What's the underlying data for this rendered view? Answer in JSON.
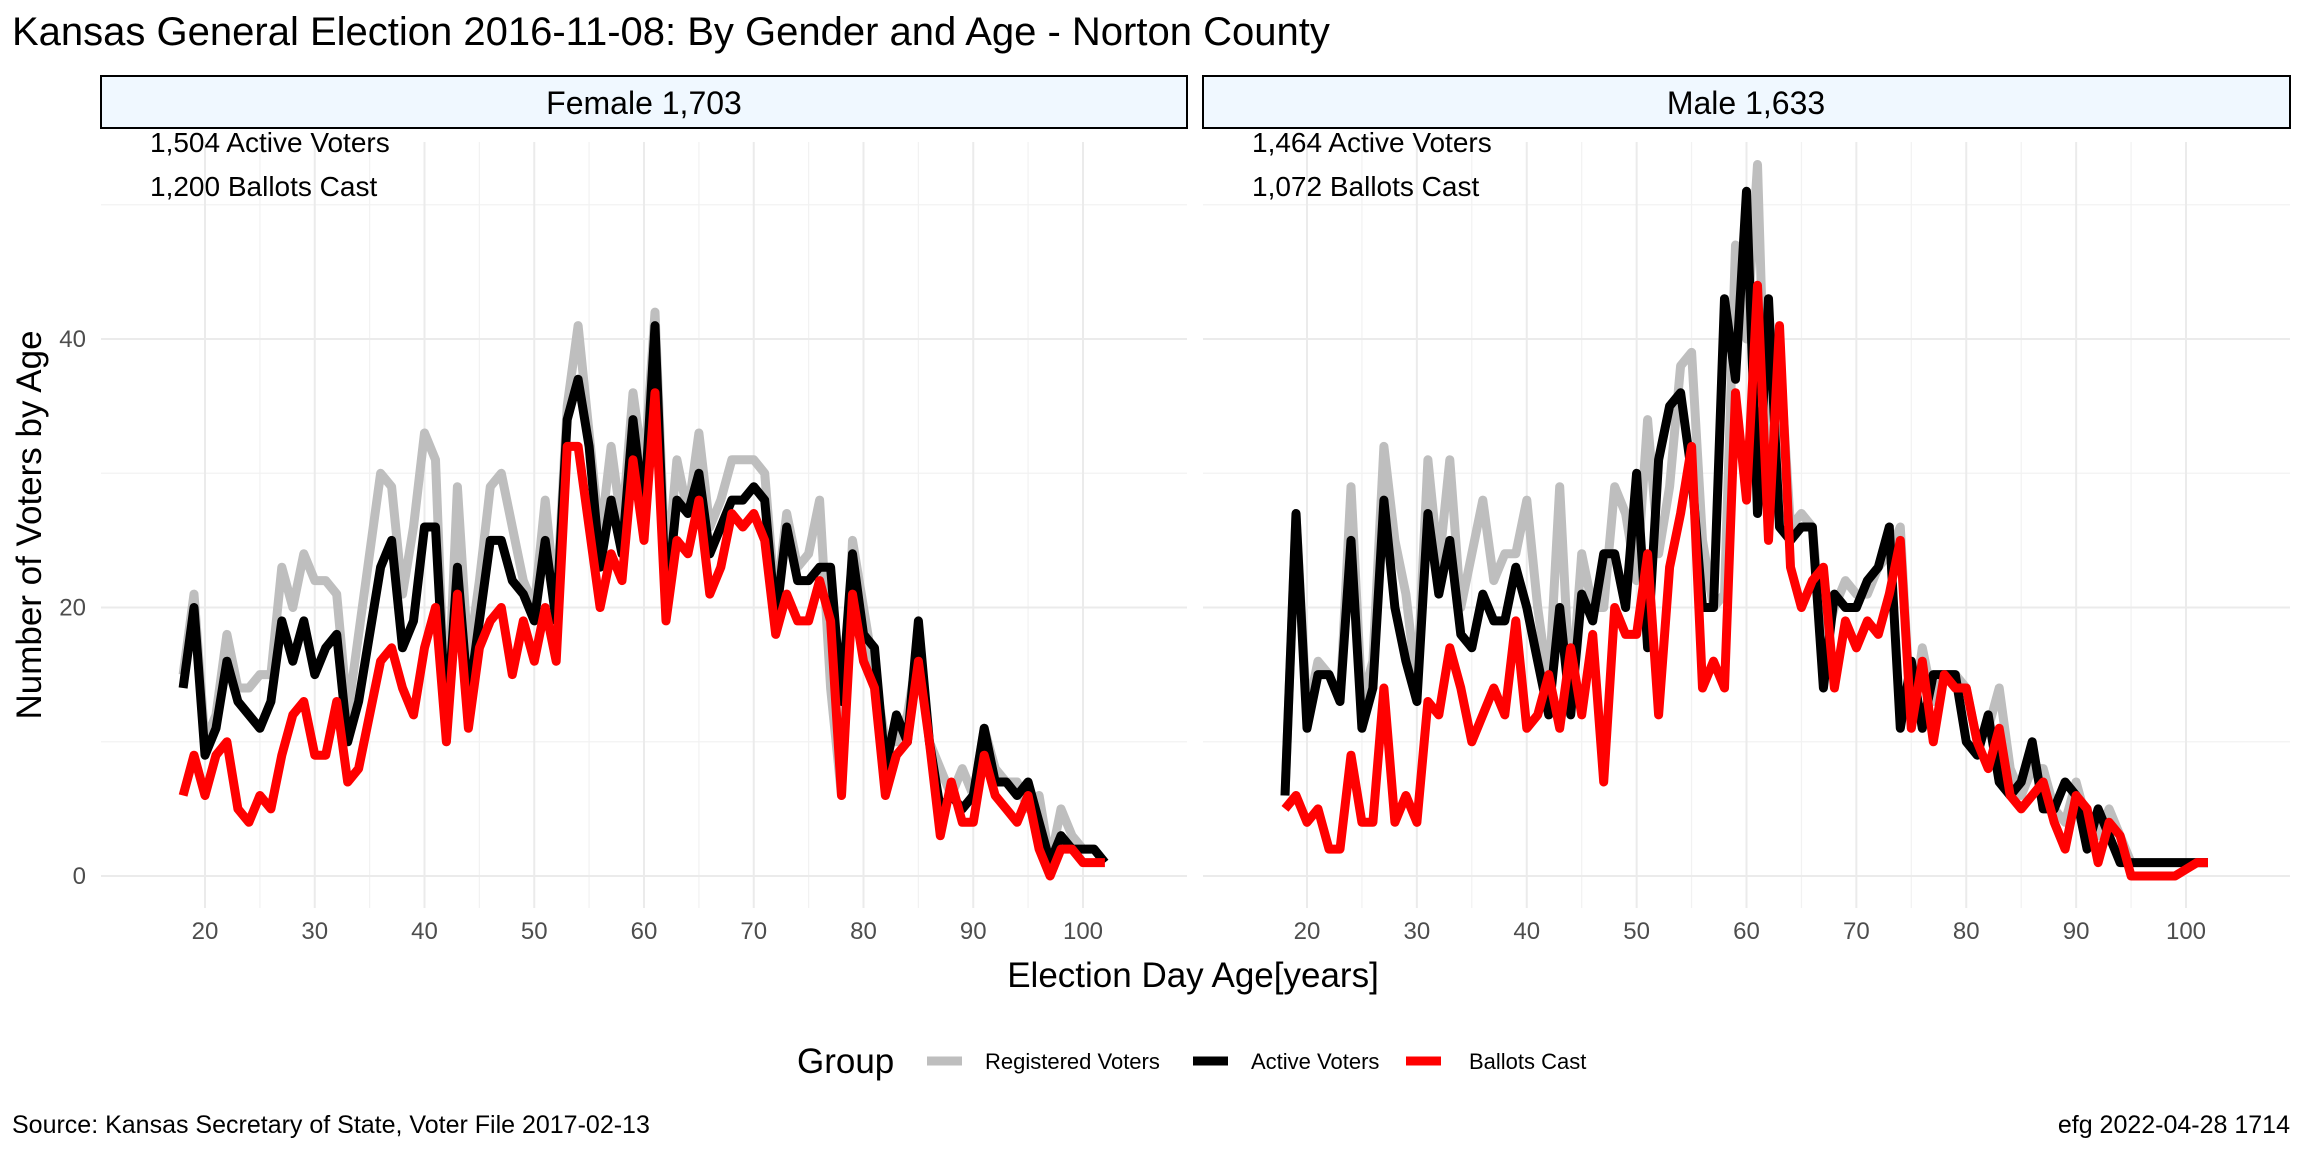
{
  "title": "Kansas General Election 2016-11-08:  By Gender and Age - Norton County",
  "xlabel": "Election Day Age[years]",
  "ylabel": "Number of Voters by Age",
  "source": "Source:  Kansas Secretary of State, Voter File  2017-02-13",
  "credit": "efg 2022-04-28 1714",
  "legend": {
    "title": "Group",
    "items": [
      {
        "label": "Registered Voters",
        "color": "#bebebe"
      },
      {
        "label": "Active Voters",
        "color": "#000000"
      },
      {
        "label": "Ballots Cast",
        "color": "#ff0000"
      }
    ]
  },
  "colors": {
    "strip_fill": "#f0f8ff",
    "grid": "#ebebeb",
    "registered": "#bebebe",
    "active": "#000000",
    "ballots": "#ff0000"
  },
  "chart_data": [
    {
      "type": "line",
      "panel": "Female 1,703",
      "annotations": [
        "1,504 Active Voters",
        "1,200 Ballots Cast"
      ],
      "xlim": [
        18,
        102
      ],
      "ylim": [
        0,
        50
      ],
      "x_ticks": [
        20,
        30,
        40,
        50,
        60,
        70,
        80,
        90,
        100
      ],
      "y_ticks": [
        0,
        20,
        40
      ],
      "x": [
        18,
        19,
        20,
        21,
        22,
        23,
        24,
        25,
        26,
        27,
        28,
        29,
        30,
        31,
        32,
        33,
        34,
        35,
        36,
        37,
        38,
        39,
        40,
        41,
        42,
        43,
        44,
        45,
        46,
        47,
        48,
        49,
        50,
        51,
        52,
        53,
        54,
        55,
        56,
        57,
        58,
        59,
        60,
        61,
        62,
        63,
        64,
        65,
        66,
        67,
        68,
        69,
        70,
        71,
        72,
        73,
        74,
        75,
        76,
        77,
        78,
        79,
        80,
        81,
        82,
        83,
        84,
        85,
        86,
        87,
        88,
        89,
        90,
        91,
        92,
        93,
        94,
        95,
        96,
        97,
        98,
        99,
        100,
        101,
        102
      ],
      "series": [
        {
          "name": "Registered Voters",
          "values": [
            15,
            21,
            10,
            12,
            18,
            14,
            14,
            15,
            15,
            23,
            20,
            24,
            22,
            22,
            21,
            12,
            18,
            24,
            30,
            29,
            21,
            26,
            33,
            31,
            10,
            29,
            16,
            22,
            29,
            30,
            26,
            22,
            20,
            28,
            20,
            35,
            41,
            33,
            25,
            32,
            26,
            36,
            30,
            42,
            22,
            31,
            27,
            33,
            26,
            28,
            31,
            31,
            31,
            30,
            20,
            27,
            23,
            24,
            28,
            14,
            6,
            25,
            20,
            15,
            10,
            10,
            12,
            17,
            10,
            8,
            6,
            8,
            6,
            11,
            8,
            7,
            7,
            5,
            6,
            1,
            5,
            3,
            2,
            2,
            1
          ],
          "color": "#bebebe"
        },
        {
          "name": "Active Voters",
          "values": [
            14,
            20,
            9,
            11,
            16,
            13,
            12,
            11,
            13,
            19,
            16,
            19,
            15,
            17,
            18,
            10,
            13,
            18,
            23,
            25,
            17,
            19,
            26,
            26,
            11,
            23,
            13,
            19,
            25,
            25,
            22,
            21,
            19,
            25,
            19,
            34,
            37,
            32,
            23,
            28,
            24,
            34,
            27,
            41,
            20,
            28,
            27,
            30,
            24,
            26,
            28,
            28,
            29,
            28,
            19,
            26,
            22,
            22,
            23,
            23,
            13,
            24,
            18,
            17,
            8,
            12,
            10,
            19,
            10,
            5,
            6,
            5,
            6,
            11,
            7,
            7,
            6,
            7,
            4,
            1,
            3,
            2,
            2,
            2,
            1
          ],
          "color": "#000000"
        },
        {
          "name": "Ballots Cast",
          "values": [
            6,
            9,
            6,
            9,
            10,
            5,
            4,
            6,
            5,
            9,
            12,
            13,
            9,
            9,
            13,
            7,
            8,
            12,
            16,
            17,
            14,
            12,
            17,
            20,
            10,
            21,
            11,
            17,
            19,
            20,
            15,
            19,
            16,
            20,
            16,
            32,
            32,
            26,
            20,
            24,
            22,
            31,
            25,
            36,
            19,
            25,
            24,
            28,
            21,
            23,
            27,
            26,
            27,
            25,
            18,
            21,
            19,
            19,
            22,
            19,
            6,
            21,
            16,
            14,
            6,
            9,
            10,
            16,
            10,
            3,
            7,
            4,
            4,
            9,
            6,
            5,
            4,
            6,
            2,
            0,
            2,
            2,
            1,
            1,
            1
          ],
          "color": "#ff0000"
        }
      ]
    },
    {
      "type": "line",
      "panel": "Male 1,633",
      "annotations": [
        "1,464 Active Voters",
        "1,072 Ballots Cast"
      ],
      "xlim": [
        18,
        102
      ],
      "ylim": [
        0,
        50
      ],
      "x_ticks": [
        20,
        30,
        40,
        50,
        60,
        70,
        80,
        90,
        100
      ],
      "y_ticks": [
        0,
        20,
        40
      ],
      "x": [
        18,
        19,
        20,
        21,
        22,
        23,
        24,
        25,
        26,
        27,
        28,
        29,
        30,
        31,
        32,
        33,
        34,
        35,
        36,
        37,
        38,
        39,
        40,
        41,
        42,
        43,
        44,
        45,
        46,
        47,
        48,
        49,
        50,
        51,
        52,
        53,
        54,
        55,
        56,
        57,
        58,
        59,
        60,
        61,
        62,
        63,
        64,
        65,
        66,
        67,
        68,
        69,
        70,
        71,
        72,
        73,
        74,
        75,
        76,
        77,
        78,
        79,
        80,
        81,
        82,
        83,
        84,
        85,
        86,
        87,
        88,
        89,
        90,
        91,
        92,
        93,
        94,
        95,
        96,
        97,
        98,
        99,
        100,
        101,
        102
      ],
      "series": [
        {
          "name": "Registered Voters",
          "values": [
            6,
            27,
            12,
            16,
            15,
            13,
            29,
            13,
            16,
            32,
            25,
            21,
            14,
            31,
            23,
            31,
            20,
            24,
            28,
            22,
            24,
            24,
            28,
            20,
            14,
            29,
            13,
            24,
            20,
            20,
            29,
            27,
            22,
            34,
            24,
            29,
            38,
            39,
            25,
            20,
            21,
            47,
            40,
            53,
            26,
            39,
            26,
            27,
            26,
            17,
            20,
            22,
            21,
            21,
            23,
            24,
            26,
            11,
            17,
            13,
            15,
            15,
            14,
            10,
            11,
            14,
            8,
            6,
            8,
            8,
            5,
            4,
            7,
            4,
            3,
            5,
            3,
            1,
            1,
            1,
            1,
            1,
            1,
            1,
            1
          ],
          "color": "#bebebe"
        },
        {
          "name": "Active Voters",
          "values": [
            6,
            27,
            11,
            15,
            15,
            13,
            25,
            11,
            14,
            28,
            20,
            16,
            13,
            27,
            21,
            25,
            18,
            17,
            21,
            19,
            19,
            23,
            20,
            16,
            12,
            20,
            12,
            21,
            19,
            24,
            24,
            20,
            30,
            17,
            31,
            35,
            36,
            30,
            20,
            20,
            43,
            37,
            51,
            27,
            43,
            26,
            25,
            26,
            26,
            14,
            21,
            20,
            20,
            22,
            23,
            26,
            11,
            16,
            11,
            15,
            15,
            15,
            10,
            9,
            12,
            7,
            6,
            7,
            10,
            5,
            5,
            7,
            6,
            2,
            5,
            3,
            1,
            1,
            1,
            1,
            1,
            1,
            1,
            1,
            1
          ],
          "color": "#000000"
        },
        {
          "name": "Ballots Cast",
          "values": [
            5,
            6,
            4,
            5,
            2,
            2,
            9,
            4,
            4,
            14,
            4,
            6,
            4,
            13,
            12,
            17,
            14,
            10,
            12,
            14,
            12,
            19,
            11,
            12,
            15,
            11,
            17,
            12,
            18,
            7,
            20,
            18,
            18,
            24,
            12,
            23,
            27,
            32,
            14,
            16,
            14,
            36,
            28,
            44,
            25,
            41,
            23,
            20,
            22,
            23,
            14,
            19,
            17,
            19,
            18,
            21,
            25,
            11,
            16,
            10,
            15,
            14,
            14,
            10,
            8,
            11,
            6,
            5,
            6,
            7,
            4,
            2,
            6,
            5,
            1,
            4,
            3,
            0,
            0,
            0,
            0,
            0,
            0.5,
            1,
            1
          ],
          "color": "#ff0000"
        }
      ]
    }
  ]
}
